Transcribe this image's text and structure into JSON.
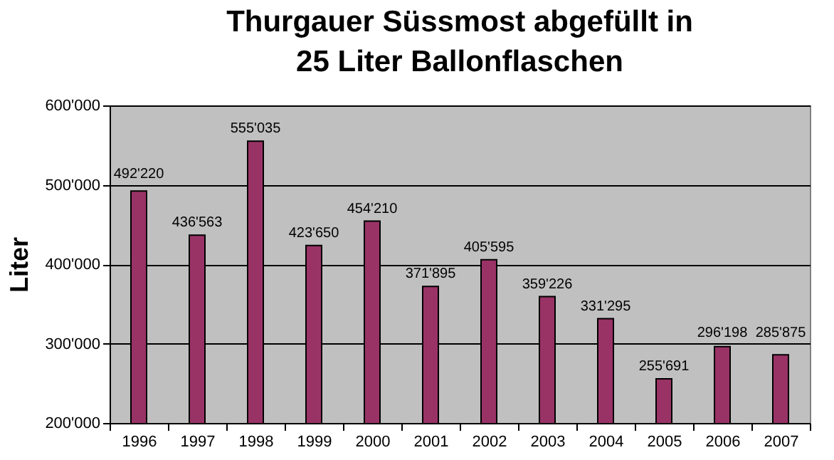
{
  "chart_data": {
    "type": "bar",
    "title": "Thurgauer Süssmost abgefüllt in\n25 Liter Ballonflaschen",
    "ylabel": "Liter",
    "categories": [
      "1996",
      "1997",
      "1998",
      "1999",
      "2000",
      "2001",
      "2002",
      "2003",
      "2004",
      "2005",
      "2006",
      "2007"
    ],
    "values": [
      492220,
      436563,
      555035,
      423650,
      454210,
      371895,
      405595,
      359226,
      331295,
      255691,
      296198,
      285875
    ],
    "value_labels": [
      "492'220",
      "436'563",
      "555'035",
      "423'650",
      "454'210",
      "371'895",
      "405'595",
      "359'226",
      "331'295",
      "255'691",
      "296'198",
      "285'875"
    ],
    "color": "#993366",
    "ylim": [
      200000,
      600000
    ],
    "yticks": [
      {
        "value": 200000,
        "label": "200'000"
      },
      {
        "value": 300000,
        "label": "300'000"
      },
      {
        "value": 400000,
        "label": "400'000"
      },
      {
        "value": 500000,
        "label": "500'000"
      },
      {
        "value": 600000,
        "label": "600'000"
      }
    ],
    "grid": "y"
  }
}
